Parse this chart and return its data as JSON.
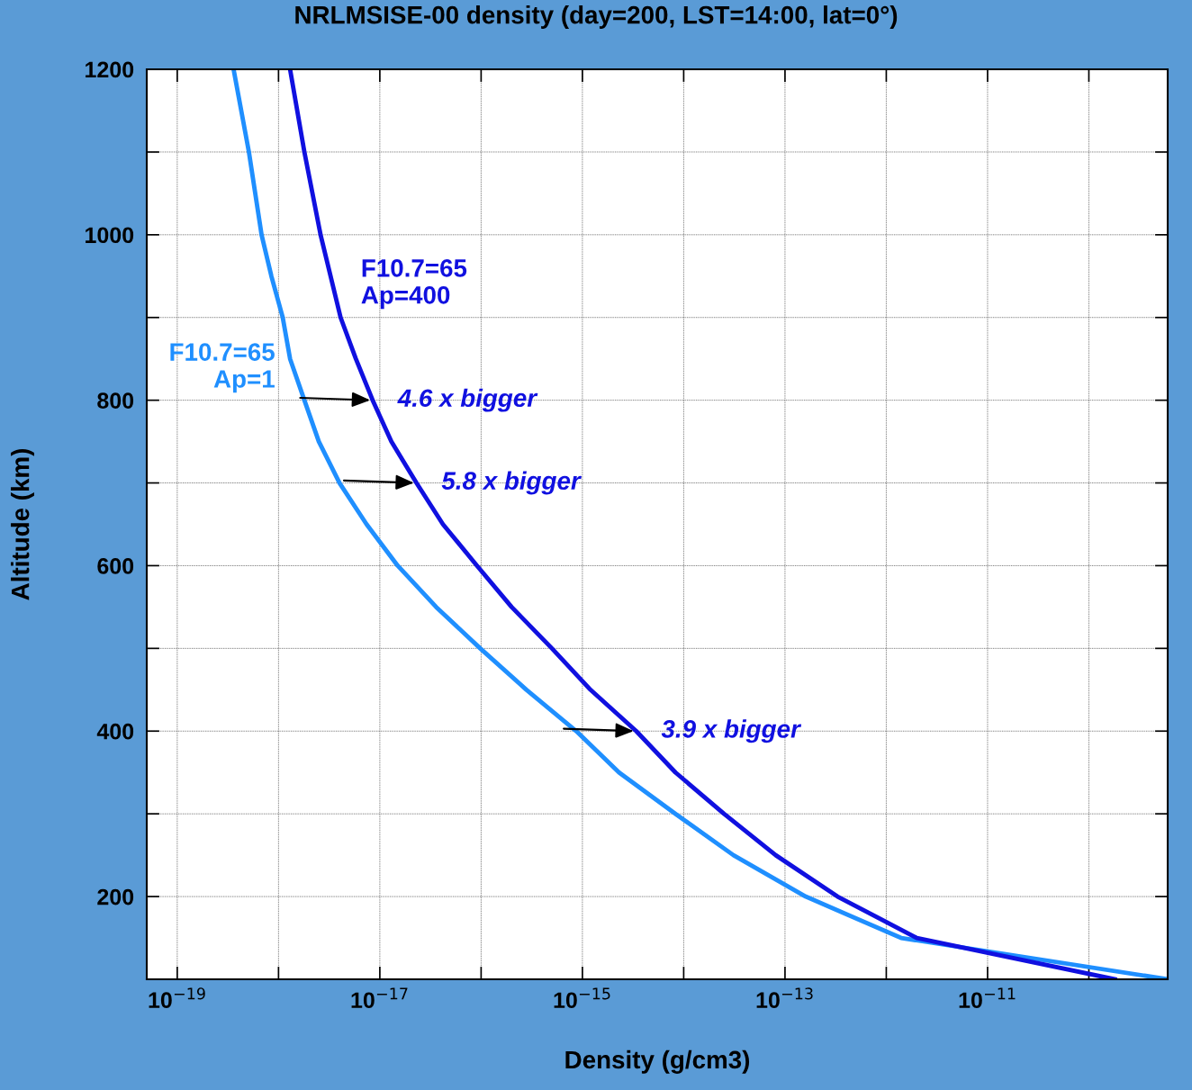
{
  "chart_data": {
    "type": "line",
    "title": "NRLMSISE-00 density (day=200, LST=14:00, lat=0°)",
    "xlabel": "Density (g/cm3)",
    "ylabel": "Altitude (km)",
    "log": "x",
    "grid": true,
    "marker": "none",
    "line_style": "solid",
    "xlim": [
      5e-20,
      6e-10
    ],
    "xticks": [
      {
        "value": 1e-19,
        "label": "10$^{−19}$"
      },
      {
        "value": 1e-18,
        "label": null
      },
      {
        "value": 1e-17,
        "label": "10$^{−17}$"
      },
      {
        "value": 1e-16,
        "label": null
      },
      {
        "value": 1e-15,
        "label": "10$^{−15}$"
      },
      {
        "value": 1e-14,
        "label": null
      },
      {
        "value": 1e-13,
        "label": "10$^{−13}$"
      },
      {
        "value": 1e-12,
        "label": null
      },
      {
        "value": 1e-11,
        "label": "10$^{−11}$"
      },
      {
        "value": 1e-10,
        "label": null
      }
    ],
    "ylim": [
      100,
      1200
    ],
    "yticks": [
      200,
      {
        "value": 300,
        "label": null
      },
      400,
      {
        "value": 500,
        "label": null
      },
      600,
      {
        "value": 700,
        "label": null
      },
      800,
      {
        "value": 900,
        "label": null
      },
      1000,
      {
        "value": 1100,
        "label": null
      },
      1200
    ],
    "series": [
      {
        "name": "F10.7=65\nAp=1",
        "color": "#1f8fff",
        "x": [
          3.6e-19,
          5.1e-19,
          6.8e-19,
          8.5e-19,
          1.1e-18,
          1.3e-18,
          1.8e-18,
          2.5e-18,
          4e-18,
          7.4e-18,
          1.5e-17,
          3.6e-17,
          9.8e-17,
          2.8e-16,
          8.7e-16,
          2.3e-15,
          8.3e-15,
          3.1e-14,
          1.6e-13,
          1.4e-12,
          6e-10
        ],
        "values": [
          1200,
          1100,
          1000,
          950,
          900,
          850,
          800,
          750,
          700,
          650,
          600,
          550,
          500,
          450,
          400,
          350,
          300,
          250,
          200,
          150,
          100
        ]
      },
      {
        "name": "F10.7=65\nAp=400",
        "color": "#1010e0",
        "x": [
          1.3e-18,
          1.8e-18,
          2.6e-18,
          4.1e-18,
          5.8e-18,
          8.5e-18,
          1.3e-17,
          2.3e-17,
          4.2e-17,
          9.1e-17,
          2e-16,
          5e-16,
          1.2e-15,
          3.4e-15,
          8.3e-15,
          2.5e-14,
          8.1e-14,
          3.3e-13,
          2e-12,
          1.8e-10
        ],
        "values": [
          1200,
          1100,
          1000,
          900,
          850,
          800,
          750,
          700,
          650,
          600,
          550,
          500,
          450,
          400,
          350,
          300,
          250,
          200,
          150,
          100
        ]
      }
    ],
    "annotations": [
      {
        "text": "4.6 x bigger",
        "x": 8.5e-18,
        "y": 800
      },
      {
        "text": "5.8 x bigger",
        "x": 2.3e-17,
        "y": 700
      },
      {
        "text": "3.9 x bigger",
        "x": 3.4e-15,
        "y": 400
      }
    ]
  }
}
